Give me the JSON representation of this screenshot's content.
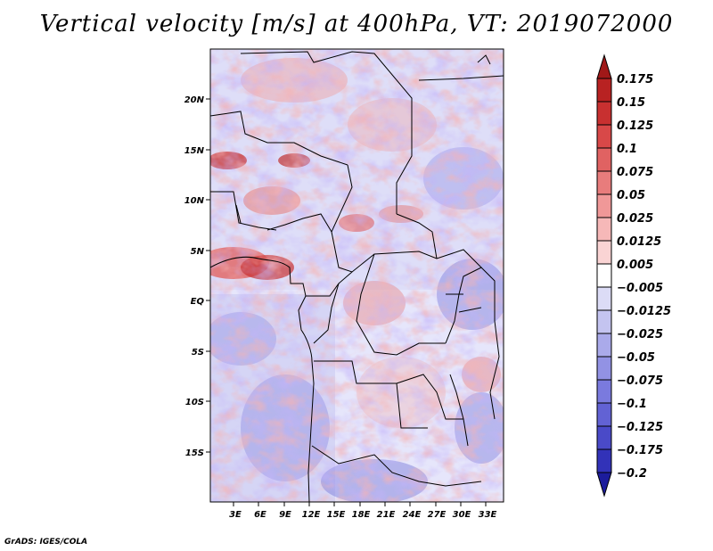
{
  "title": "Vertical velocity [m/s] at 400hPa, VT: 2019072000",
  "footer": "GrADS: IGES/COLA",
  "map": {
    "variable": "Vertical velocity",
    "units": "m/s",
    "level": "400hPa",
    "valid_time": "2019072000",
    "lat_ticks": [
      "20N",
      "15N",
      "10N",
      "5N",
      "EQ",
      "5S",
      "10S",
      "15S"
    ],
    "lon_ticks": [
      "3E",
      "6E",
      "9E",
      "12E",
      "15E",
      "18E",
      "21E",
      "24E",
      "27E",
      "30E",
      "33E"
    ]
  },
  "colorbar": {
    "labels": [
      "0.175",
      "0.15",
      "0.125",
      "0.1",
      "0.075",
      "0.05",
      "0.025",
      "0.0125",
      "0.005",
      "−0.005",
      "−0.0125",
      "−0.025",
      "−0.05",
      "−0.075",
      "−0.1",
      "−0.125",
      "−0.175",
      "−0.2"
    ],
    "colors": [
      "#a01818",
      "#b82222",
      "#c83030",
      "#d84848",
      "#e06262",
      "#e87c7c",
      "#f09898",
      "#f6b8b8",
      "#fad4d4",
      "#ffffff",
      "#dcdcf6",
      "#c4c4f0",
      "#aaaaea",
      "#9292e4",
      "#7a7ade",
      "#6262d4",
      "#4a4ac8",
      "#3232b8",
      "#1c1c9c"
    ]
  }
}
